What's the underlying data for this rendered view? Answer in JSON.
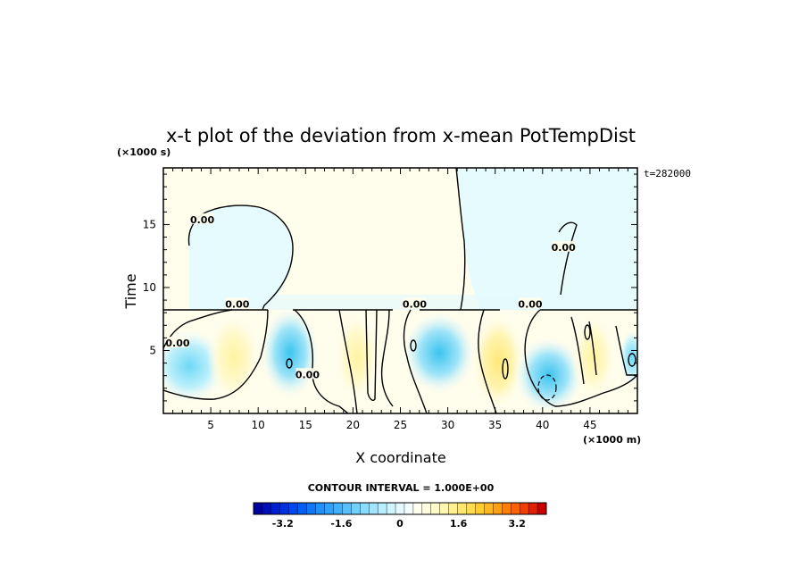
{
  "chart_data": {
    "type": "heatmap",
    "title": "x-t plot of the deviation from x-mean PotTempDist",
    "xlabel": "X coordinate",
    "ylabel": "Time",
    "x_unit": "(×1000 m)",
    "y_unit": "(×1000 s)",
    "time_stamp": "t=282000",
    "xlim": [
      0,
      50
    ],
    "ylim": [
      0,
      19.5
    ],
    "x_ticks": [
      "5",
      "10",
      "15",
      "20",
      "25",
      "30",
      "35",
      "40",
      "45"
    ],
    "y_ticks": [
      "5",
      "10",
      "15"
    ],
    "contour_label": "0.00",
    "contour_interval_text": "CONTOUR INTERVAL = 1.000E+00",
    "colorbar": {
      "min": -4.0,
      "max": 4.0,
      "tick_labels": [
        "-3.2",
        "-1.6",
        "0",
        "1.6",
        "3.2"
      ],
      "colors": [
        "#0000a0",
        "#0010b8",
        "#0020d0",
        "#0030e0",
        "#0048ee",
        "#0060f5",
        "#1078f8",
        "#2090fa",
        "#30a0fc",
        "#40b0fd",
        "#58c0fe",
        "#70d0ff",
        "#88dcff",
        "#a0e6ff",
        "#b8eeff",
        "#d0f4ff",
        "#e4faff",
        "#f2fdff",
        "#fffff0",
        "#fffde0",
        "#fffac8",
        "#fff6b0",
        "#fff090",
        "#ffe870",
        "#ffdc50",
        "#ffcc30",
        "#ffb820",
        "#ffa010",
        "#ff8000",
        "#ff6000",
        "#f04000",
        "#e02000",
        "#c80000"
      ]
    },
    "zero_contour_labels": [
      {
        "x": 4.1,
        "y": 15.4
      },
      {
        "x": 1.5,
        "y": 5.6
      },
      {
        "x": 7.8,
        "y": 8.7
      },
      {
        "x": 15.2,
        "y": 3.1
      },
      {
        "x": 26.5,
        "y": 8.7
      },
      {
        "x": 38.7,
        "y": 8.7
      },
      {
        "x": 42.2,
        "y": 13.2
      }
    ]
  }
}
